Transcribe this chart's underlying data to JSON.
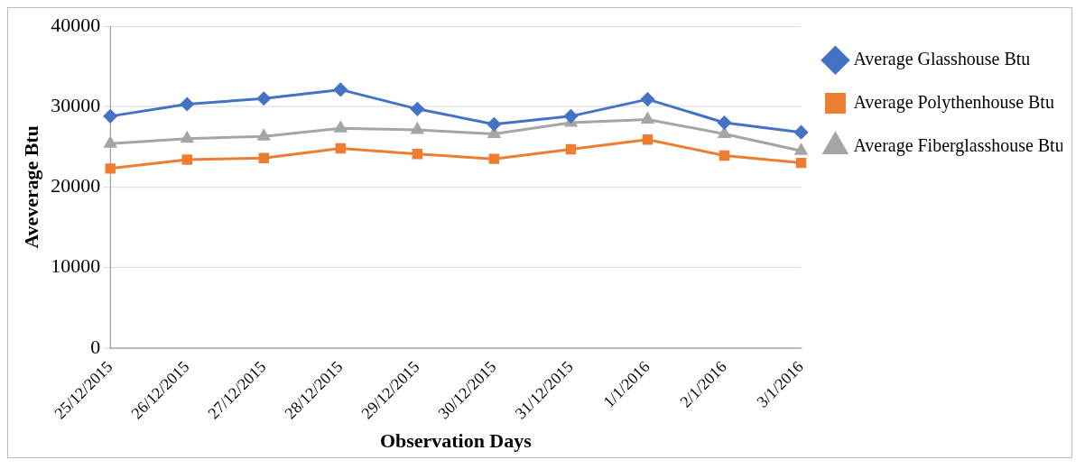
{
  "chart_data": {
    "type": "line",
    "xlabel": "Observation Days",
    "ylabel": "Aveverage Btu",
    "categories": [
      "25/12/2015",
      "26/12/2015",
      "27/12/2015",
      "28/12/2015",
      "29/12/2015",
      "30/12/2015",
      "31/12/2015",
      "1/1/2016",
      "2/1/2016",
      "3/1/2016"
    ],
    "series": [
      {
        "name": "Average Glasshouse Btu",
        "color": "#4472c4",
        "marker": "diamond",
        "values": [
          28800,
          30300,
          31000,
          32100,
          29700,
          27800,
          28800,
          30900,
          28000,
          26800
        ]
      },
      {
        "name": "Average Polythenhouse Btu",
        "color": "#ed7d31",
        "marker": "square",
        "values": [
          22300,
          23400,
          23600,
          24800,
          24100,
          23500,
          24700,
          25900,
          23900,
          23000
        ]
      },
      {
        "name": "Average Fiberglasshouse Btu",
        "color": "#a5a5a5",
        "marker": "triangle",
        "values": [
          25400,
          26000,
          26300,
          27300,
          27100,
          26600,
          28000,
          28400,
          26600,
          24500
        ]
      }
    ],
    "ylim": [
      0,
      40000
    ],
    "yticks": [
      0,
      10000,
      20000,
      30000,
      40000
    ],
    "grid": "y",
    "legend": "right"
  }
}
